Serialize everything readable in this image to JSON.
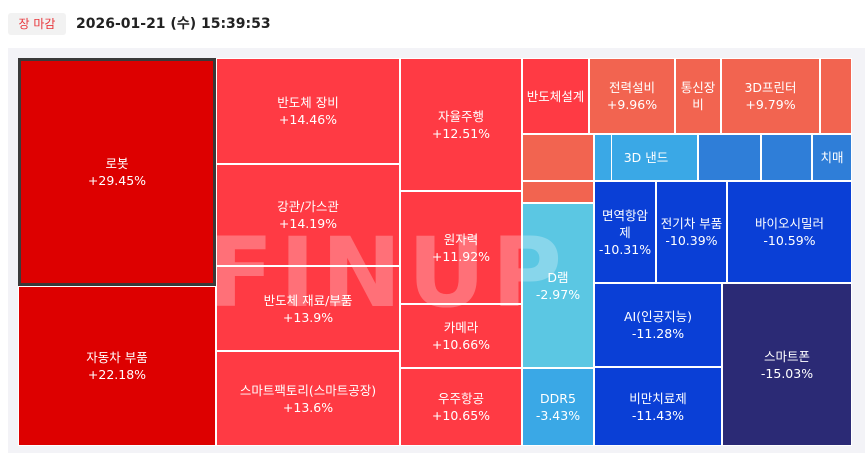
{
  "header": {
    "status_badge": "장 마감",
    "timestamp": "2026-01-21 (수) 15:39:53"
  },
  "watermark": "FINUP",
  "colors": {
    "up_strong": "#dd0000",
    "up_mid": "#ff3a44",
    "up_light": "#f26450",
    "down_light_cyan": "#5bc7e3",
    "down_cyan": "#3aa8e6",
    "down_blue": "#2f7ed8",
    "down_mid": "#1f5fd9",
    "down_strong": "#0a3fd6",
    "down_navy": "#2b2a75"
  },
  "tiles": [
    {
      "label": "로봇",
      "change": "+29.45%",
      "color": "#dd0000"
    },
    {
      "label": "자동차 부품",
      "change": "+22.18%",
      "color": "#dd0000"
    },
    {
      "label": "반도체 장비",
      "change": "+14.46%",
      "color": "#ff3a44"
    },
    {
      "label": "강관/가스관",
      "change": "+14.19%",
      "color": "#ff3a44"
    },
    {
      "label": "반도체 재료/부품",
      "change": "+13.9%",
      "color": "#ff3a44"
    },
    {
      "label": "스마트팩토리(스마트공장)",
      "change": "+13.6%",
      "color": "#ff3a44"
    },
    {
      "label": "자율주행",
      "change": "+12.51%",
      "color": "#ff3a44"
    },
    {
      "label": "원자력",
      "change": "+11.92%",
      "color": "#ff3a44"
    },
    {
      "label": "카메라",
      "change": "+10.66%",
      "color": "#ff3a44"
    },
    {
      "label": "우주항공",
      "change": "+10.65%",
      "color": "#ff3a44"
    },
    {
      "label": "반도체설계",
      "change": "",
      "color": "#ff3a44"
    },
    {
      "label": "전력설비",
      "change": "+9.96%",
      "color": "#f26450"
    },
    {
      "label": "통신장비",
      "change": "",
      "color": "#f26450"
    },
    {
      "label": "3D프린터",
      "change": "+9.79%",
      "color": "#f26450"
    },
    {
      "label": "",
      "change": "",
      "color": "#f26450"
    },
    {
      "label": "",
      "change": "",
      "color": "#f26450"
    },
    {
      "label": "",
      "change": "",
      "color": "#f26450"
    },
    {
      "label": "3D 낸드",
      "change": "",
      "color": "#3aa8e6"
    },
    {
      "label": "",
      "change": "",
      "color": "#3aa8e6"
    },
    {
      "label": "",
      "change": "",
      "color": "#2f7ed8"
    },
    {
      "label": "",
      "change": "",
      "color": "#2f7ed8"
    },
    {
      "label": "치매",
      "change": "",
      "color": "#2f7ed8"
    },
    {
      "label": "D램",
      "change": "-2.97%",
      "color": "#5bc7e3"
    },
    {
      "label": "DDR5",
      "change": "-3.43%",
      "color": "#3aa8e6"
    },
    {
      "label": "면역항암제",
      "change": "-10.31%",
      "color": "#0a3fd6"
    },
    {
      "label": "전기차 부품",
      "change": "-10.39%",
      "color": "#0a3fd6"
    },
    {
      "label": "바이오시밀러",
      "change": "-10.59%",
      "color": "#0a3fd6"
    },
    {
      "label": "AI(인공지능)",
      "change": "-11.28%",
      "color": "#0a3fd6"
    },
    {
      "label": "비만치료제",
      "change": "-11.43%",
      "color": "#0a3fd6"
    },
    {
      "label": "스마트폰",
      "change": "-15.03%",
      "color": "#2b2a75"
    }
  ]
}
